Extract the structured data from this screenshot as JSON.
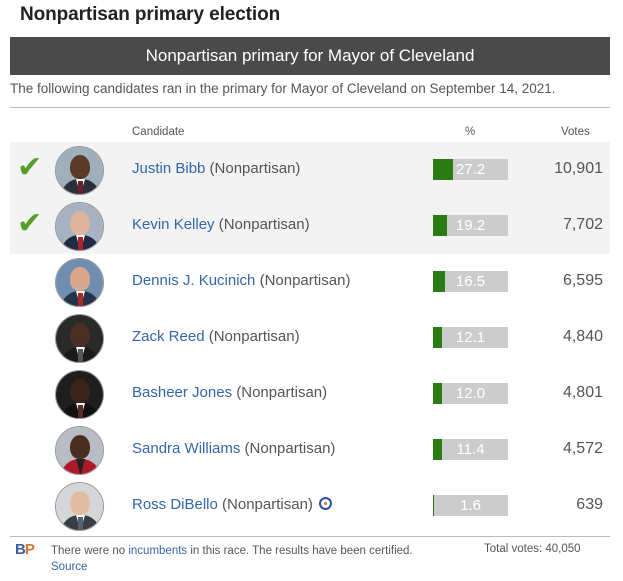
{
  "heading": "Nonpartisan primary election",
  "banner": "Nonpartisan primary for Mayor of Cleveland",
  "intro": "The following candidates ran in the primary for Mayor of Cleveland on September 14, 2021.",
  "columns": {
    "candidate": "Candidate",
    "pct": "%",
    "votes": "Votes"
  },
  "colors": {
    "check": "#559d2d",
    "bar_fill": "#2c7a14",
    "bar_bg": "#cccccc",
    "link": "#3366aa",
    "banner_bg": "#4a4a4a"
  },
  "candidates": [
    {
      "name": "Justin Bibb",
      "party": " (Nonpartisan)",
      "pct": "27.2",
      "pct_value": 27.2,
      "votes": "10,901",
      "advanced": true,
      "icon": "check-icon"
    },
    {
      "name": "Kevin Kelley",
      "party": " (Nonpartisan)",
      "pct": "19.2",
      "pct_value": 19.2,
      "votes": "7,702",
      "advanced": true,
      "icon": "check-icon"
    },
    {
      "name": "Dennis J. Kucinich",
      "party": " (Nonpartisan)",
      "pct": "16.5",
      "pct_value": 16.5,
      "votes": "6,595",
      "advanced": false
    },
    {
      "name": "Zack Reed",
      "party": " (Nonpartisan)",
      "pct": "12.1",
      "pct_value": 12.1,
      "votes": "4,840",
      "advanced": false
    },
    {
      "name": "Basheer Jones",
      "party": " (Nonpartisan)",
      "pct": "12.0",
      "pct_value": 12.0,
      "votes": "4,801",
      "advanced": false
    },
    {
      "name": "Sandra Williams",
      "party": " (Nonpartisan)",
      "pct": "11.4",
      "pct_value": 11.4,
      "votes": "4,572",
      "advanced": false
    },
    {
      "name": "Ross DiBello",
      "party": " (Nonpartisan)",
      "pct": "1.6",
      "pct_value": 1.6,
      "votes": "639",
      "advanced": false,
      "badge": "candidate-connection-icon"
    }
  ],
  "footer": {
    "logo_b": "B",
    "logo_p": "P",
    "text_pre": "There were no ",
    "incumbents_link": "incumbents",
    "text_post": " in this race. The results have been certified. ",
    "source_link": "Source",
    "total": "Total votes: 40,050"
  }
}
